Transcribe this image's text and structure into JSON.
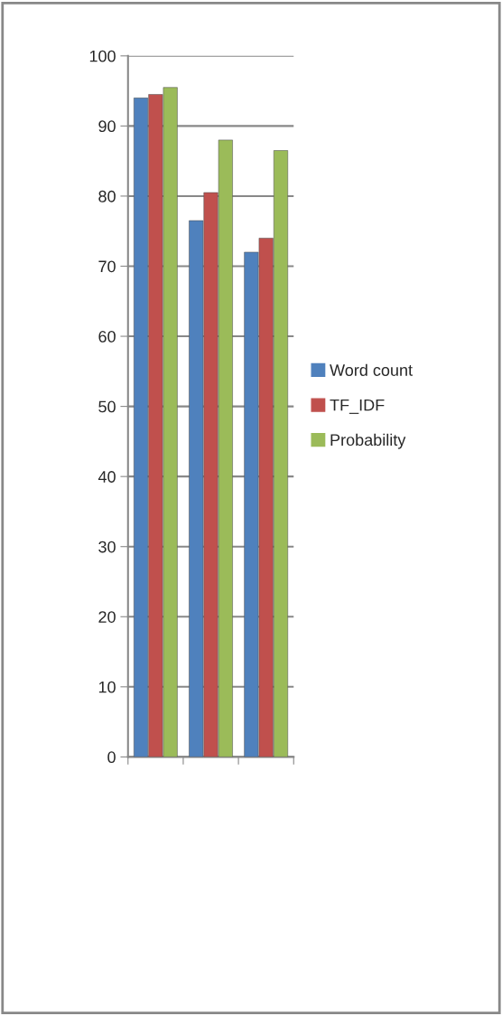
{
  "chart_data": {
    "type": "bar",
    "categories": [
      null,
      null,
      null
    ],
    "series": [
      {
        "name": "Word count",
        "color": "#4f81bd",
        "values": [
          94,
          76.5,
          72
        ]
      },
      {
        "name": "TF_IDF",
        "color": "#c0504d",
        "values": [
          94.5,
          80.5,
          74
        ]
      },
      {
        "name": "Probability",
        "color": "#9bbb59",
        "values": [
          95.5,
          88,
          86.5
        ]
      }
    ],
    "ylim": [
      0,
      100
    ],
    "yticks": [
      0,
      10,
      20,
      30,
      40,
      50,
      60,
      70,
      80,
      90,
      100
    ],
    "grid": "y",
    "legend": "right"
  }
}
